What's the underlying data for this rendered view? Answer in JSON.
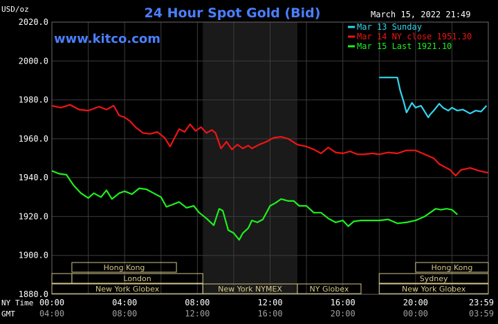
{
  "chart_data": {
    "type": "line",
    "title": "24 Hour Spot Gold (Bid)",
    "watermark": "www.kitco.com",
    "unit_label": "USD/oz",
    "timestamp": "March 15, 2022 21:49",
    "ylim": [
      1880,
      2020
    ],
    "y_ticks": [
      "2020.0",
      "2000.0",
      "1980.0",
      "1960.0",
      "1940.0",
      "1920.0",
      "1900.0",
      "1880.0"
    ],
    "xlim": [
      0,
      24
    ],
    "x_axis_label": "NY Time",
    "x_ticks": [
      "00:00",
      "04:00",
      "08:00",
      "12:00",
      "16:00",
      "20:00",
      "23:59"
    ],
    "gmt_axis_label": "GMT",
    "gmt_ticks": [
      "04:00",
      "08:00",
      "12:00",
      "16:00",
      "20:00",
      "00:00",
      "03:59"
    ],
    "grid": true,
    "legend_position": "top-right",
    "shaded_region_hours": [
      8.3,
      13.5
    ],
    "colors": {
      "background": "#000000",
      "grid": "#3c3c3c",
      "axis_text": "#ffffff",
      "title": "#4a7fff",
      "session_box": "#d4c88a",
      "shade": "#1a1a1a"
    },
    "series": [
      {
        "name": "Mar 13 Sunday",
        "color": "#33d6f0",
        "x": [
          18.0,
          19.0,
          19.15,
          19.35,
          19.5,
          19.8,
          20.0,
          20.3,
          20.5,
          20.7,
          20.8,
          21.0,
          21.3,
          21.5,
          21.8,
          22.0,
          22.3,
          22.6,
          23.0,
          23.3,
          23.6,
          23.9
        ],
        "y": [
          1991.5,
          1991.5,
          1985.0,
          1979.0,
          1973.5,
          1978.5,
          1976.0,
          1977.0,
          1974.0,
          1971.0,
          1972.5,
          1974.5,
          1978.0,
          1976.0,
          1974.5,
          1976.0,
          1974.5,
          1975.0,
          1973.0,
          1974.5,
          1974.0,
          1977.0
        ]
      },
      {
        "name": "Mar 14 NY close 1951.30",
        "color": "#f01414",
        "x": [
          0.0,
          0.5,
          1.0,
          1.5,
          2.0,
          2.6,
          3.0,
          3.4,
          3.7,
          4.0,
          4.3,
          4.6,
          5.0,
          5.4,
          5.8,
          6.2,
          6.5,
          7.0,
          7.3,
          7.6,
          7.9,
          8.2,
          8.5,
          8.8,
          9.0,
          9.3,
          9.6,
          9.9,
          10.2,
          10.5,
          10.8,
          11.0,
          11.4,
          11.8,
          12.2,
          12.6,
          13.0,
          13.5,
          14.0,
          14.4,
          14.8,
          15.2,
          15.6,
          16.0,
          16.4,
          16.8,
          17.2,
          17.6,
          18.0,
          18.5,
          19.0,
          19.5,
          20.0,
          20.5,
          21.0,
          21.3,
          21.6,
          21.9,
          22.2,
          22.5,
          23.0,
          23.5,
          23.99
        ],
        "y": [
          1977.0,
          1976.0,
          1977.5,
          1975.0,
          1974.5,
          1976.5,
          1975.0,
          1977.0,
          1972.0,
          1971.0,
          1969.0,
          1966.0,
          1963.0,
          1962.5,
          1963.5,
          1960.5,
          1956.0,
          1965.0,
          1963.5,
          1967.5,
          1964.0,
          1966.0,
          1963.0,
          1964.5,
          1963.0,
          1955.0,
          1958.5,
          1954.5,
          1957.0,
          1955.0,
          1956.5,
          1955.0,
          1957.0,
          1958.5,
          1960.5,
          1961.0,
          1960.0,
          1957.0,
          1956.0,
          1954.5,
          1952.5,
          1955.5,
          1953.0,
          1952.5,
          1953.5,
          1952.0,
          1952.0,
          1952.5,
          1952.0,
          1953.0,
          1952.5,
          1954.0,
          1954.0,
          1952.0,
          1950.0,
          1947.0,
          1945.5,
          1944.0,
          1941.0,
          1944.0,
          1945.0,
          1943.5,
          1942.5
        ]
      },
      {
        "name": "Mar 15 Last 1921.10",
        "color": "#1ef01e",
        "x": [
          0.0,
          0.4,
          0.8,
          1.2,
          1.6,
          2.0,
          2.3,
          2.7,
          3.0,
          3.3,
          3.7,
          4.0,
          4.4,
          4.8,
          5.2,
          5.6,
          6.0,
          6.3,
          6.6,
          7.0,
          7.4,
          7.8,
          8.1,
          8.5,
          8.9,
          9.2,
          9.4,
          9.7,
          10.0,
          10.3,
          10.5,
          10.8,
          11.0,
          11.3,
          11.6,
          12.0,
          12.3,
          12.6,
          13.0,
          13.3,
          13.6,
          14.0,
          14.4,
          14.8,
          15.2,
          15.6,
          16.0,
          16.3,
          16.6,
          17.0,
          17.5,
          18.0,
          18.5,
          19.0,
          19.5,
          20.0,
          20.5,
          20.8,
          21.1,
          21.4,
          21.7,
          22.0,
          22.3
        ],
        "y": [
          1943.5,
          1942.0,
          1941.5,
          1936.0,
          1932.0,
          1929.5,
          1932.0,
          1930.0,
          1933.5,
          1929.0,
          1932.0,
          1933.0,
          1931.5,
          1934.5,
          1934.0,
          1932.0,
          1930.0,
          1925.0,
          1926.0,
          1927.5,
          1924.5,
          1925.5,
          1922.0,
          1919.0,
          1915.5,
          1924.0,
          1923.0,
          1913.0,
          1911.5,
          1908.0,
          1911.5,
          1914.0,
          1918.0,
          1917.0,
          1918.5,
          1925.5,
          1927.0,
          1929.0,
          1928.0,
          1928.0,
          1925.5,
          1925.5,
          1922.0,
          1922.0,
          1919.0,
          1917.0,
          1918.0,
          1915.0,
          1917.5,
          1918.0,
          1918.0,
          1918.0,
          1918.5,
          1916.5,
          1917.0,
          1918.0,
          1920.0,
          1922.0,
          1924.0,
          1923.5,
          1924.0,
          1923.5,
          1921.0
        ]
      }
    ],
    "sessions": [
      {
        "name": "Hong Kong",
        "row": 0,
        "start": 1.1,
        "end": 6.85
      },
      {
        "name": "",
        "row": 1,
        "start": 0.0,
        "end": 1.1
      },
      {
        "name": "London",
        "row": 1,
        "start": 6.85,
        "end": 8.3
      },
      {
        "name": "London",
        "row": 1,
        "start": 1.1,
        "end": 8.3
      },
      {
        "name": "New York Globex",
        "row": 2,
        "start": 0.0,
        "end": 8.3
      },
      {
        "name": "New York NYMEX",
        "row": 2,
        "start": 8.3,
        "end": 13.5
      },
      {
        "name": "NY Globex",
        "row": 2,
        "start": 13.5,
        "end": 17.0
      },
      {
        "name": "Hong Kong",
        "row": 0,
        "start": 20.0,
        "end": 24.0
      },
      {
        "name": "Sydney",
        "row": 1,
        "start": 18.0,
        "end": 24.0
      },
      {
        "name": "New York Globex",
        "row": 2,
        "start": 18.0,
        "end": 24.0
      }
    ]
  }
}
